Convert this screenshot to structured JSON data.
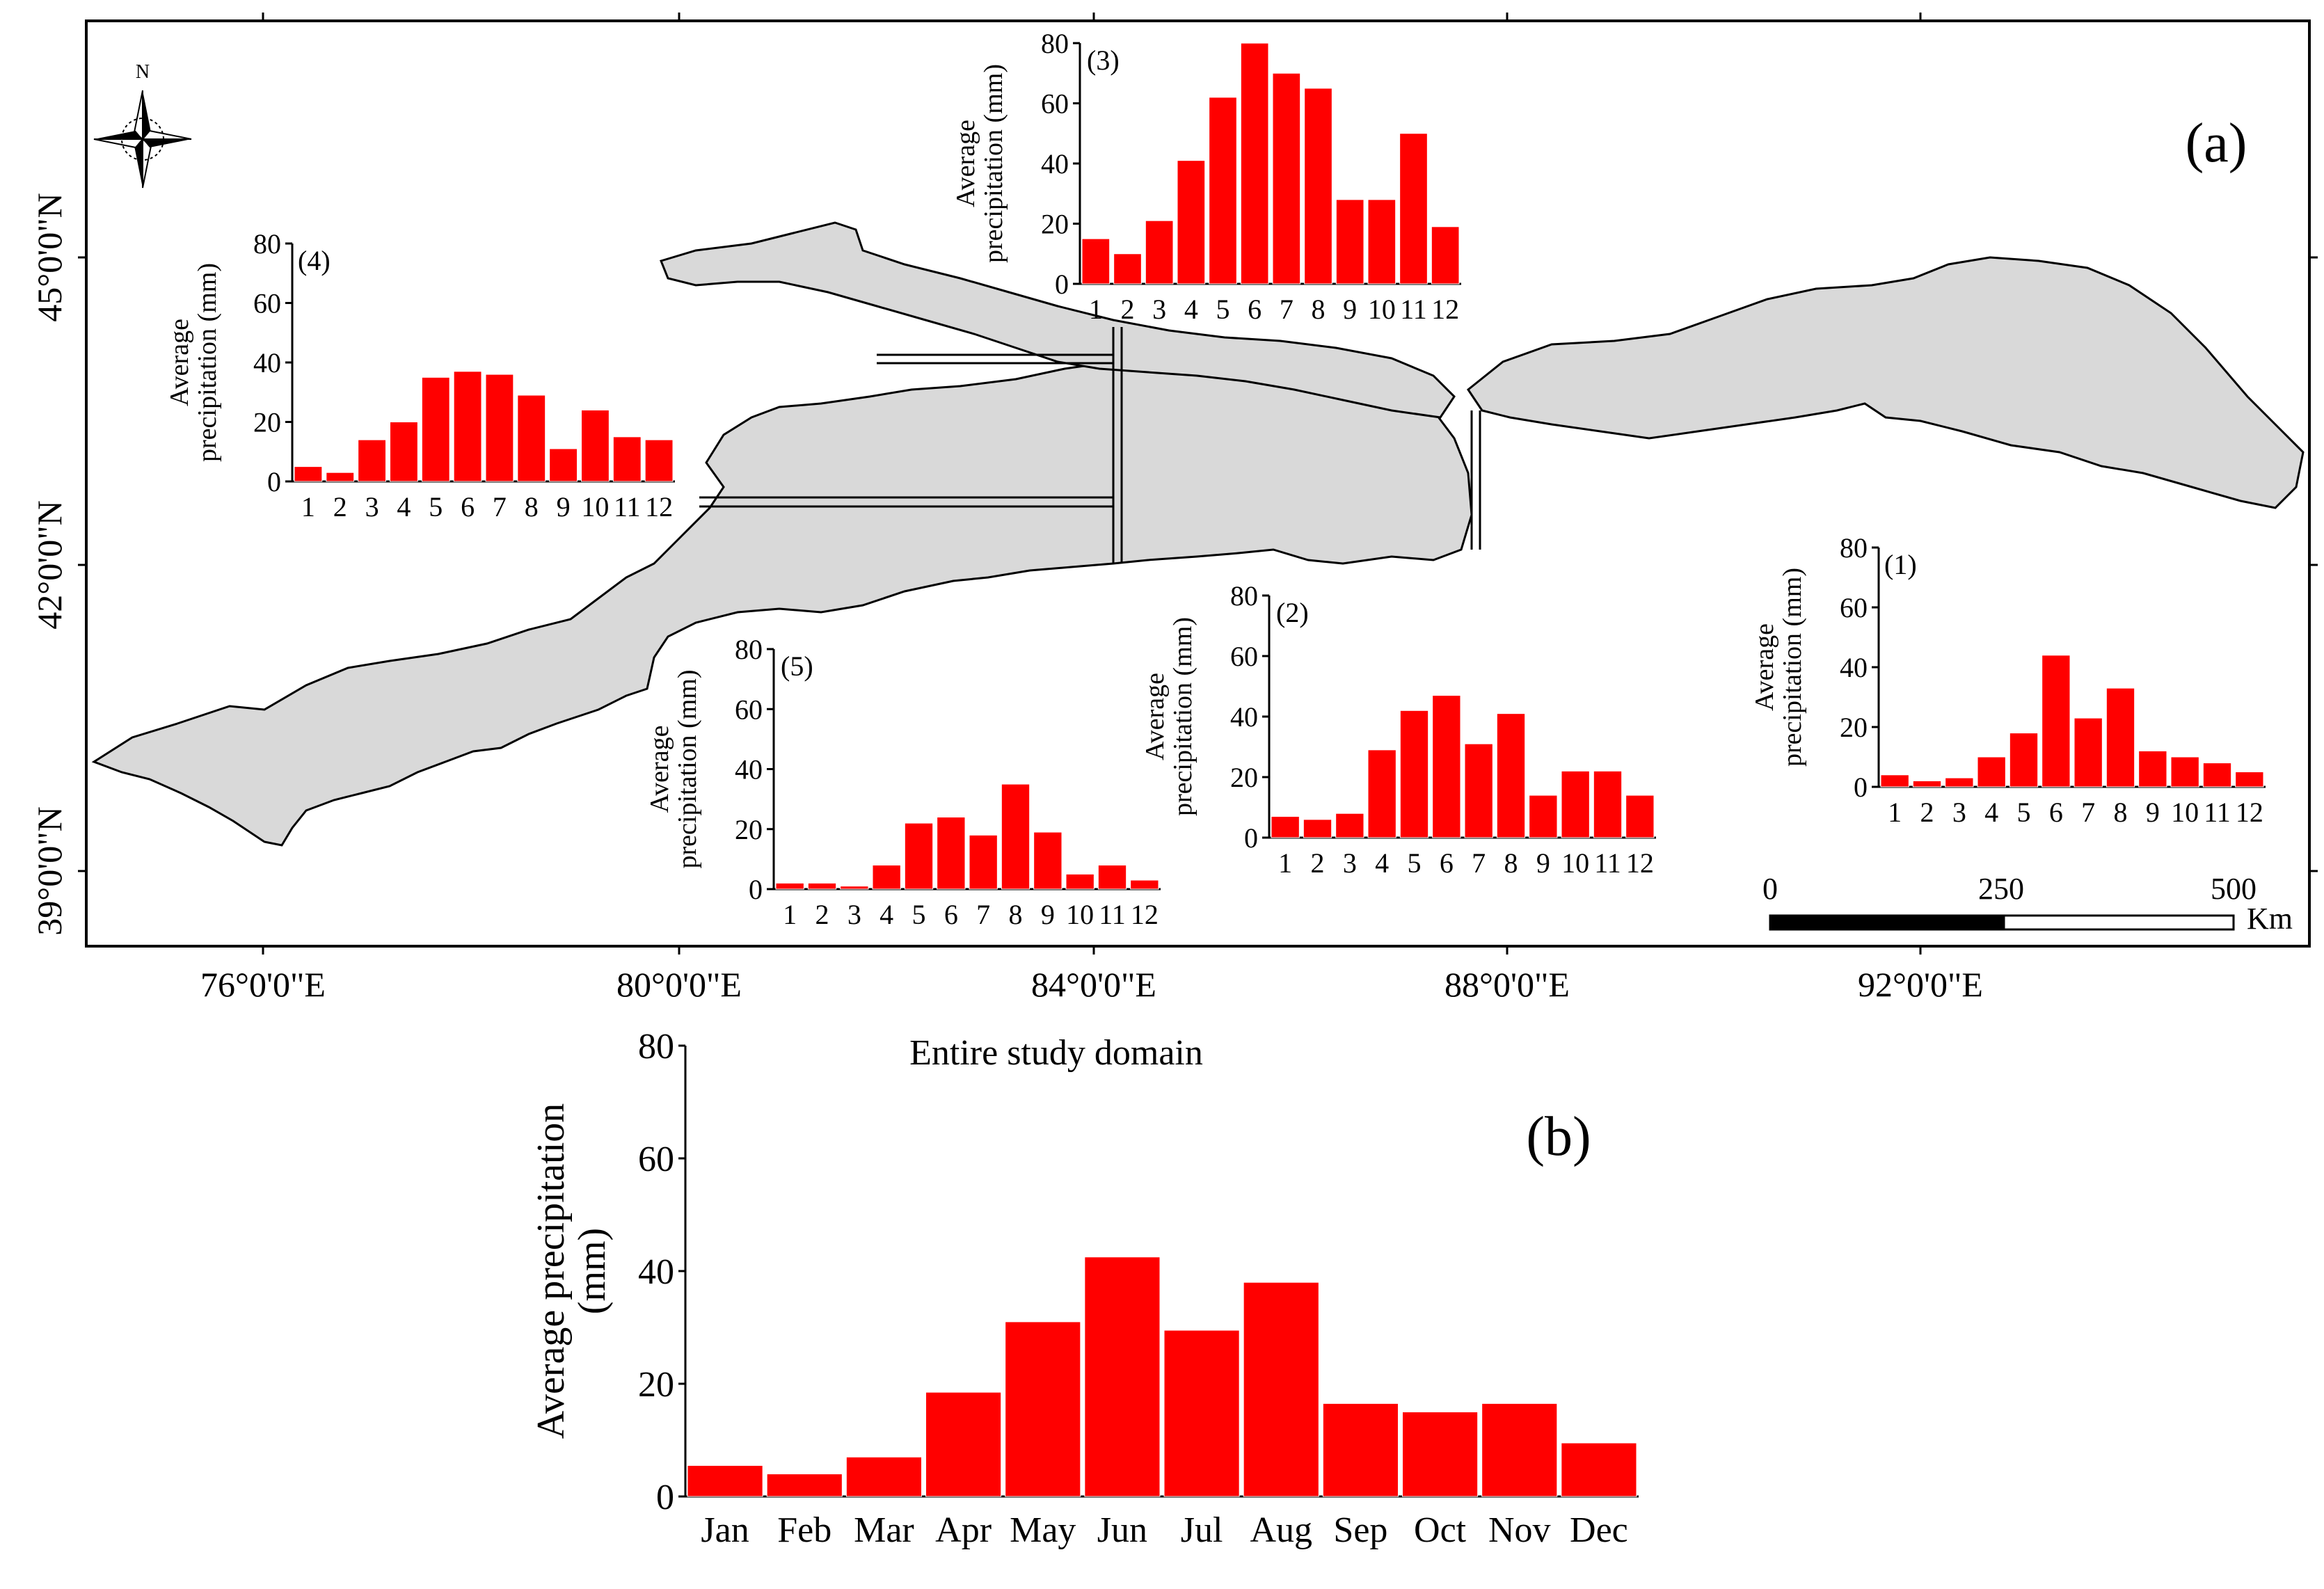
{
  "panel_a": {
    "label": "(a)",
    "lat_labels": [
      "45°0'0\"N",
      "42°0'0\"N",
      "39°0'0\"N"
    ],
    "lon_labels": [
      "76°0'0\"E",
      "80°0'0\"E",
      "84°0'0\"E",
      "88°0'0\"E",
      "92°0'0\"E"
    ],
    "north_label": "N",
    "scale_labels": [
      "0",
      "250",
      "500"
    ],
    "scale_unit": "Km"
  },
  "panel_b": {
    "label": "(b)"
  },
  "colors": {
    "bar": "#ff0000",
    "land": "#d9d9d9",
    "outline": "#000000"
  },
  "chart_data": [
    {
      "id": "sub1",
      "type": "bar",
      "title": "(1)",
      "ylabel": "Average precipitation (mm)",
      "categories": [
        "1",
        "2",
        "3",
        "4",
        "5",
        "6",
        "7",
        "8",
        "9",
        "10",
        "11",
        "12"
      ],
      "values": [
        4,
        2,
        3,
        10,
        18,
        44,
        23,
        33,
        12,
        10,
        8,
        5
      ],
      "ylim": [
        0,
        80
      ],
      "yticks": [
        "0",
        "20",
        "40",
        "60",
        "80"
      ]
    },
    {
      "id": "sub2",
      "type": "bar",
      "title": "(2)",
      "ylabel": "Average precipitation (mm)",
      "categories": [
        "1",
        "2",
        "3",
        "4",
        "5",
        "6",
        "7",
        "8",
        "9",
        "10",
        "11",
        "12"
      ],
      "values": [
        7,
        6,
        8,
        29,
        42,
        47,
        31,
        41,
        14,
        22,
        22,
        14
      ],
      "ylim": [
        0,
        80
      ],
      "yticks": [
        "0",
        "20",
        "40",
        "60",
        "80"
      ]
    },
    {
      "id": "sub3",
      "type": "bar",
      "title": "(3)",
      "ylabel": "Average precipitation (mm)",
      "categories": [
        "1",
        "2",
        "3",
        "4",
        "5",
        "6",
        "7",
        "8",
        "9",
        "10",
        "11",
        "12"
      ],
      "values": [
        15,
        10,
        21,
        41,
        62,
        80,
        70,
        65,
        28,
        28,
        50,
        19
      ],
      "ylim": [
        0,
        80
      ],
      "yticks": [
        "0",
        "20",
        "40",
        "60",
        "80"
      ]
    },
    {
      "id": "sub4",
      "type": "bar",
      "title": "(4)",
      "ylabel": "Average precipitation (mm)",
      "categories": [
        "1",
        "2",
        "3",
        "4",
        "5",
        "6",
        "7",
        "8",
        "9",
        "10",
        "11",
        "12"
      ],
      "values": [
        5,
        3,
        14,
        20,
        35,
        37,
        36,
        29,
        11,
        24,
        15,
        14
      ],
      "ylim": [
        0,
        80
      ],
      "yticks": [
        "0",
        "20",
        "40",
        "60",
        "80"
      ]
    },
    {
      "id": "sub5",
      "type": "bar",
      "title": "(5)",
      "ylabel": "Average precipitation (mm)",
      "categories": [
        "1",
        "2",
        "3",
        "4",
        "5",
        "6",
        "7",
        "8",
        "9",
        "10",
        "11",
        "12"
      ],
      "values": [
        2,
        2,
        1,
        8,
        22,
        24,
        18,
        35,
        19,
        5,
        8,
        3
      ],
      "ylim": [
        0,
        80
      ],
      "yticks": [
        "0",
        "20",
        "40",
        "60",
        "80"
      ]
    },
    {
      "id": "main",
      "type": "bar",
      "title": "Entire study domain",
      "ylabel": "Average precipitation (mm)",
      "categories": [
        "Jan",
        "Feb",
        "Mar",
        "Apr",
        "May",
        "Jun",
        "Jul",
        "Aug",
        "Sep",
        "Oct",
        "Nov",
        "Dec"
      ],
      "values": [
        5.5,
        4,
        7,
        18.5,
        31,
        42.5,
        29.5,
        38,
        16.5,
        15,
        16.5,
        9.5
      ],
      "ylim": [
        0,
        80
      ],
      "yticks": [
        "0",
        "20",
        "40",
        "60",
        "80"
      ]
    }
  ]
}
